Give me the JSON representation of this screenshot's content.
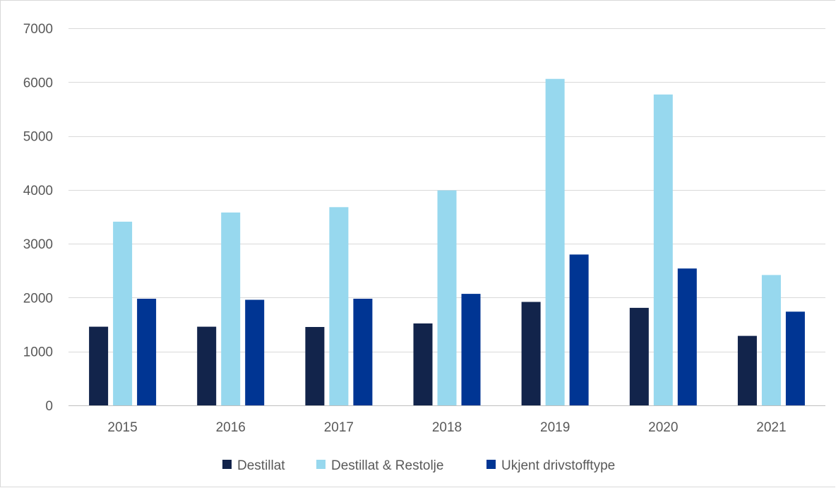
{
  "chart_data": {
    "type": "bar",
    "title": "",
    "xlabel": "",
    "ylabel": "",
    "ylim": [
      0,
      7000
    ],
    "y_ticks": [
      0,
      1000,
      2000,
      3000,
      4000,
      5000,
      6000,
      7000
    ],
    "grid": true,
    "legend_position": "bottom",
    "categories": [
      "2015",
      "2016",
      "2017",
      "2018",
      "2019",
      "2020",
      "2021"
    ],
    "series": [
      {
        "name": "Destillat",
        "color": "#12244b",
        "values": [
          1460,
          1460,
          1455,
          1520,
          1920,
          1810,
          1290
        ]
      },
      {
        "name": "Destillat & Restolje",
        "color": "#97d8ee",
        "values": [
          3410,
          3580,
          3680,
          3990,
          6060,
          5770,
          2420
        ]
      },
      {
        "name": "Ukjent drivstofftype",
        "color": "#003593",
        "values": [
          1980,
          1960,
          1980,
          2070,
          2800,
          2540,
          1740
        ]
      }
    ]
  }
}
